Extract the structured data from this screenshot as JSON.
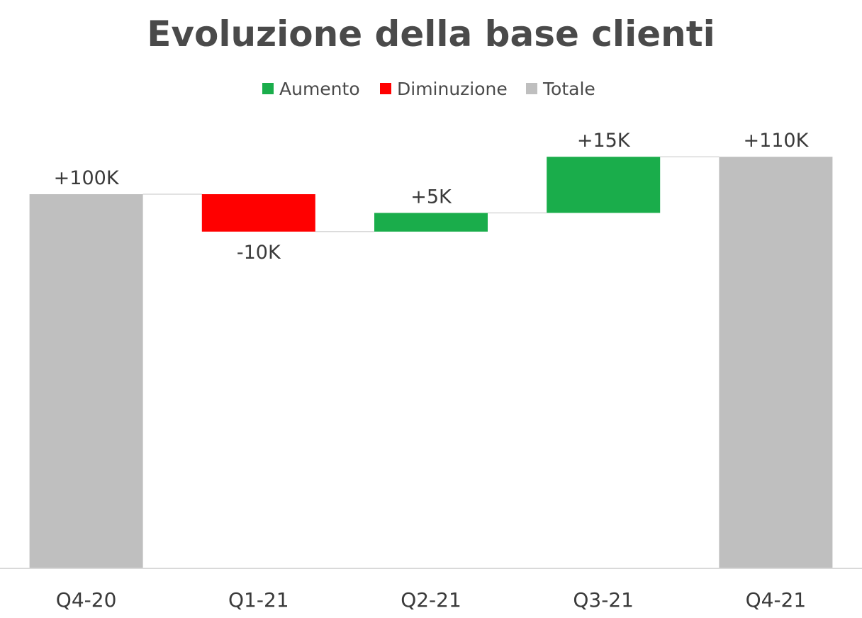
{
  "chart_data": {
    "type": "bar",
    "subtype": "waterfall",
    "title": "Evoluzione della base clienti",
    "xlabel": "",
    "ylabel": "",
    "categories": [
      "Q4-20",
      "Q1-21",
      "Q2-21",
      "Q3-21",
      "Q4-21"
    ],
    "values": [
      100,
      -10,
      5,
      15,
      110
    ],
    "kinds": [
      "total",
      "decrease",
      "increase",
      "increase",
      "total"
    ],
    "data_labels": [
      "+100K",
      "-10K",
      "+5K",
      "+15K",
      "+110K"
    ],
    "unit": "K",
    "ylim": [
      0,
      110
    ],
    "grid": false,
    "legend": {
      "position": "top-center",
      "entries": [
        {
          "name": "Aumento",
          "kind": "increase",
          "color": "#1aad4b"
        },
        {
          "name": "Diminuzione",
          "kind": "decrease",
          "color": "#ff0000"
        },
        {
          "name": "Totale",
          "kind": "total",
          "color": "#bfbfbf"
        }
      ]
    },
    "colors": {
      "increase": "#1aad4b",
      "decrease": "#ff0000",
      "total": "#bfbfbf",
      "axis": "#d9d9d9",
      "connector": "#d9d9d9"
    }
  }
}
